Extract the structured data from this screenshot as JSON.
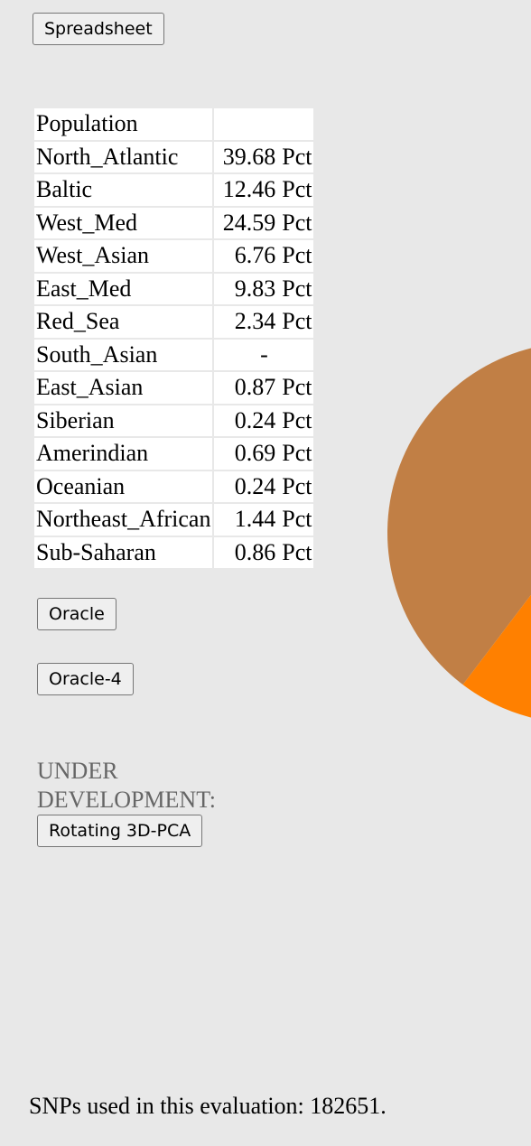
{
  "buttons": {
    "spreadsheet": "Spreadsheet",
    "oracle": "Oracle",
    "oracle4": "Oracle-4",
    "pca": "Rotating 3D-PCA"
  },
  "table": {
    "header": "Population",
    "rows": [
      {
        "population": "North_Atlantic",
        "value": 39.68,
        "unit": "Pct",
        "color": "#c17f45"
      },
      {
        "population": "Baltic",
        "value": 12.46,
        "unit": "Pct",
        "color": "#ff8000"
      },
      {
        "population": "West_Med",
        "value": 24.59,
        "unit": "Pct",
        "color": "#ff0000"
      },
      {
        "population": "West_Asian",
        "value": 6.76,
        "unit": "Pct",
        "color": "#ffd700"
      },
      {
        "population": "East_Med",
        "value": 9.83,
        "unit": "Pct",
        "color": "#00a000"
      },
      {
        "population": "Red_Sea",
        "value": 2.34,
        "unit": "Pct",
        "color": "#008080"
      },
      {
        "population": "South_Asian",
        "value": "-"
      },
      {
        "population": "East_Asian",
        "value": 0.87,
        "unit": "Pct",
        "color": "#0000ff"
      },
      {
        "population": "Siberian",
        "value": 0.24,
        "unit": "Pct",
        "color": "#800080"
      },
      {
        "population": "Amerindian",
        "value": 0.69,
        "unit": "Pct",
        "color": "#ff00ff"
      },
      {
        "population": "Oceanian",
        "value": 0.24,
        "unit": "Pct",
        "color": "#808080"
      },
      {
        "population": "Northeast_African",
        "value": 1.44,
        "unit": "Pct",
        "color": "#804000"
      },
      {
        "population": "Sub-Saharan",
        "value": 0.86,
        "unit": "Pct",
        "color": "#000000"
      }
    ]
  },
  "note": "UNDER DEVELOPMENT:",
  "footer": "SNPs used in this evaluation: 182651."
}
